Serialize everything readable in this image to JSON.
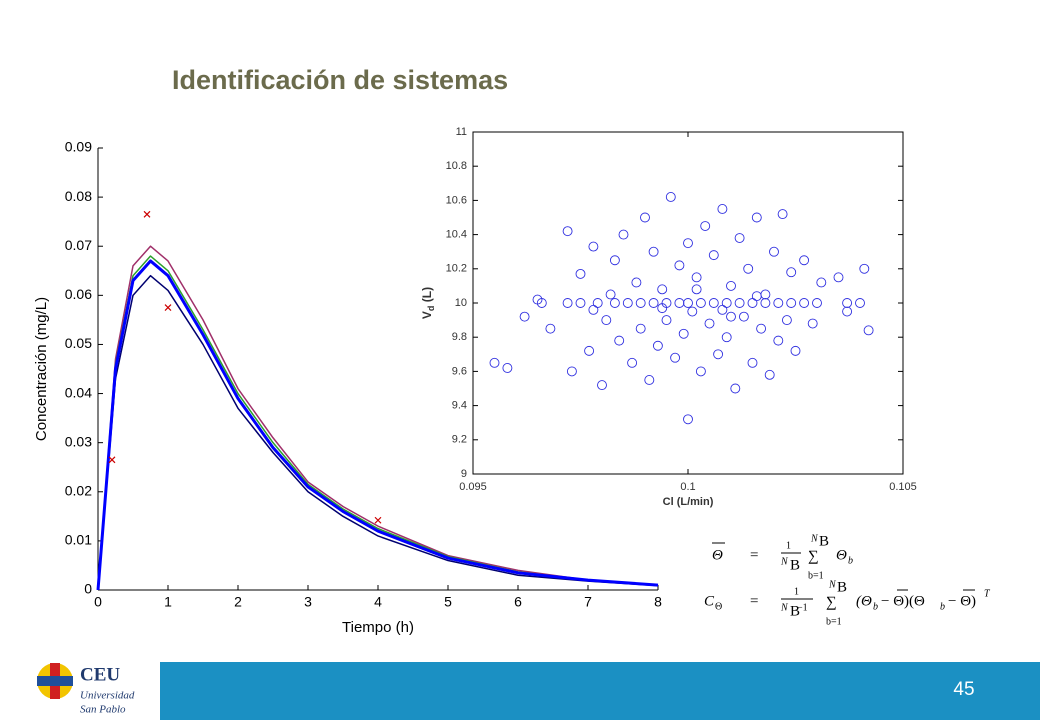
{
  "slide": {
    "title": "Identificación de sistemas",
    "page_number": "45"
  },
  "logo": {
    "name": "CEU",
    "line1": "Universidad",
    "line2": "San Pablo"
  },
  "equations": [
    {
      "lhs": "Θ",
      "eq": "=",
      "num": "1",
      "den": "N",
      "den_sub": "B",
      "sum": "∑",
      "sum_top": "N",
      "sum_top_sub": "B",
      "sum_bottom": "b=1",
      "term": "Θ",
      "term_sub": "b"
    },
    {
      "lhs": "C",
      "lhs_sub": "Θ",
      "eq": "=",
      "num": "1",
      "den": "N",
      "den_sub": "B",
      "den_rest": "−1",
      "sum": "∑",
      "sum_top": "N",
      "sum_top_sub": "B",
      "sum_bottom": "b=1",
      "term": "(Θ",
      "term_sub": "b",
      "term_rest": "− Θ)(Θ",
      "term_sub2": "b",
      "term_rest2": "− Θ)",
      "sup": "T"
    }
  ],
  "chart_data": [
    {
      "type": "line",
      "xlabel": "Tiempo (h)",
      "ylabel": "Concentración (mg/L)",
      "x": [
        0,
        0.25,
        0.5,
        0.75,
        1,
        1.5,
        2,
        2.5,
        3,
        3.5,
        4,
        5,
        6,
        7,
        8
      ],
      "series": [
        {
          "color": "#a0306a",
          "values": [
            0,
            0.047,
            0.066,
            0.07,
            0.067,
            0.055,
            0.041,
            0.031,
            0.022,
            0.017,
            0.013,
            0.007,
            0.004,
            0.002,
            0.001
          ]
        },
        {
          "color": "#2ca02c",
          "values": [
            0,
            0.046,
            0.064,
            0.068,
            0.065,
            0.053,
            0.04,
            0.03,
            0.0215,
            0.0165,
            0.0125,
            0.0068,
            0.0037,
            0.002,
            0.001
          ]
        },
        {
          "color": "#000070",
          "values": [
            0,
            0.043,
            0.06,
            0.064,
            0.061,
            0.05,
            0.037,
            0.028,
            0.02,
            0.015,
            0.011,
            0.006,
            0.003,
            0.0018,
            0.0009
          ]
        },
        {
          "color": "#0000ff",
          "values": [
            0,
            0.045,
            0.063,
            0.067,
            0.064,
            0.052,
            0.039,
            0.029,
            0.021,
            0.016,
            0.012,
            0.0065,
            0.0035,
            0.002,
            0.001
          ]
        }
      ],
      "observations": {
        "color": "#cc0000",
        "x": [
          0.2,
          0.7,
          1,
          4
        ],
        "values": [
          0.0265,
          0.0765,
          0.0575,
          0.0142
        ]
      },
      "xlim": [
        0,
        8
      ],
      "xticks": [
        0,
        1,
        2,
        3,
        4,
        5,
        6,
        7,
        8
      ],
      "ylim": [
        0,
        0.09
      ],
      "yticks": [
        0,
        0.01,
        0.02,
        0.03,
        0.04,
        0.05,
        0.06,
        0.07,
        0.08,
        0.09
      ]
    },
    {
      "type": "scatter",
      "xlabel": "Cl (L/min)",
      "ylabel_parts": [
        "V",
        "d",
        " (L)"
      ],
      "color": "#3030e0",
      "x": [
        0.0966,
        0.0972,
        0.0975,
        0.0979,
        0.0983,
        0.0986,
        0.0989,
        0.0992,
        0.0995,
        0.0998,
        0.1,
        0.1003,
        0.1006,
        0.1009,
        0.1012,
        0.1015,
        0.1018,
        0.1021,
        0.1024,
        0.1027,
        0.103,
        0.1037,
        0.104,
        0.0955,
        0.0958,
        0.0962,
        0.0965,
        0.0968,
        0.0972,
        0.0973,
        0.0975,
        0.0977,
        0.0978,
        0.098,
        0.0981,
        0.0983,
        0.0984,
        0.0985,
        0.0987,
        0.0988,
        0.0989,
        0.099,
        0.0991,
        0.0992,
        0.0993,
        0.0994,
        0.0995,
        0.0996,
        0.0997,
        0.0998,
        0.0999,
        0.1,
        0.1,
        0.1001,
        0.1002,
        0.1003,
        0.1004,
        0.1005,
        0.1006,
        0.1007,
        0.1008,
        0.1009,
        0.101,
        0.1011,
        0.1012,
        0.1013,
        0.1014,
        0.1015,
        0.1016,
        0.1017,
        0.1018,
        0.1019,
        0.102,
        0.1021,
        0.1022,
        0.1023,
        0.1024,
        0.1025,
        0.1027,
        0.1029,
        0.1031,
        0.1035,
        0.1037,
        0.1041,
        0.1042,
        0.0982,
        0.0994,
        0.1008,
        0.1016,
        0.0978,
        0.1002,
        0.101
      ],
      "values": [
        10,
        10,
        10,
        10,
        10,
        10,
        10,
        10,
        10,
        10,
        10,
        10,
        10,
        10,
        10,
        10,
        10,
        10,
        10,
        10,
        10,
        10,
        10,
        9.65,
        9.62,
        9.92,
        10.02,
        9.85,
        10.42,
        9.6,
        10.17,
        9.72,
        10.33,
        9.52,
        9.9,
        10.25,
        9.78,
        10.4,
        9.65,
        10.12,
        9.85,
        10.5,
        9.55,
        10.3,
        9.75,
        10.08,
        9.9,
        10.62,
        9.68,
        10.22,
        9.82,
        10.35,
        9.32,
        9.95,
        10.15,
        9.6,
        10.45,
        9.88,
        10.28,
        9.7,
        10.55,
        9.8,
        10.1,
        9.5,
        10.38,
        9.92,
        10.2,
        9.65,
        10.5,
        9.85,
        10.05,
        9.58,
        10.3,
        9.78,
        10.52,
        9.9,
        10.18,
        9.72,
        10.25,
        9.88,
        10.12,
        10.15,
        9.95,
        10.2,
        9.84,
        10.05,
        9.97,
        9.96,
        10.04,
        9.96,
        10.08,
        9.92
      ],
      "xlim": [
        0.095,
        0.105
      ],
      "xticks": [
        0.095,
        0.1,
        0.105
      ],
      "ylim": [
        9,
        11
      ],
      "yticks": [
        9,
        9.2,
        9.4,
        9.6,
        9.8,
        10,
        10.2,
        10.4,
        10.6,
        10.8,
        11
      ]
    }
  ]
}
